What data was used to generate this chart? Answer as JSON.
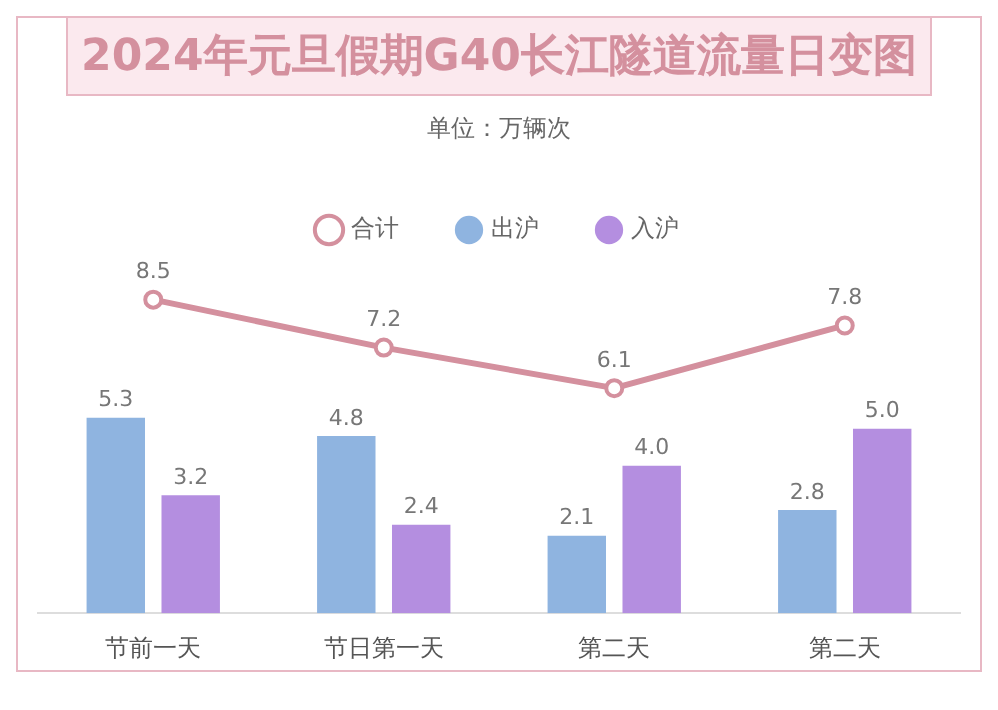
{
  "chart_data": {
    "type": "bar",
    "title": "2024年元旦假期G40长江隧道流量日变图",
    "subtitle": "单位：万辆次",
    "categories": [
      "节前一天",
      "节日第一天",
      "第二天",
      "第二天"
    ],
    "series": [
      {
        "name": "出沪",
        "color": "#8fb4e0",
        "values": [
          5.3,
          4.8,
          2.1,
          2.8
        ],
        "value_labels": [
          "5.3",
          "4.8",
          "2.1",
          "2.8"
        ]
      },
      {
        "name": "入沪",
        "color": "#b48ee0",
        "values": [
          3.2,
          2.4,
          4.0,
          5.0
        ],
        "value_labels": [
          "3.2",
          "2.4",
          "4.0",
          "5.0"
        ]
      },
      {
        "name": "合计",
        "type": "line",
        "color": "#d4909e",
        "values": [
          8.5,
          7.2,
          6.1,
          7.8
        ],
        "value_labels": [
          "8.5",
          "7.2",
          "6.1",
          "7.8"
        ]
      }
    ],
    "legend": "top",
    "grid": false,
    "tick_labels": "x",
    "marker": "circle"
  }
}
